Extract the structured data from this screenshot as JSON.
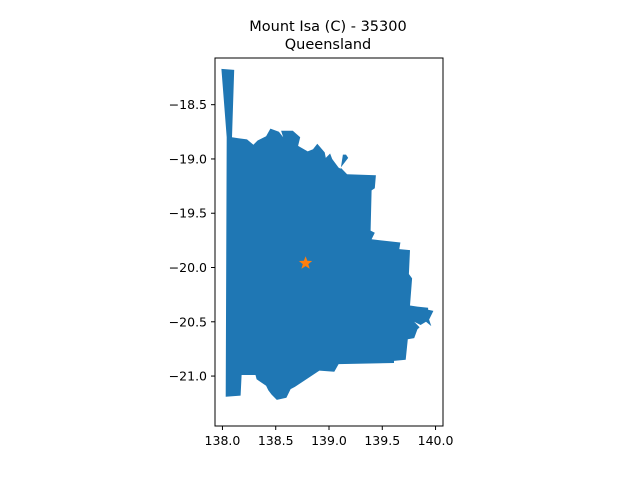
{
  "map": {
    "title": "Mount Isa (C) - 35300",
    "subtitle": "Queensland",
    "region_color": "#1f77b4",
    "marker_color": "#ff7f0e",
    "marker_shape": "star",
    "x_ticks": [
      138.0,
      138.5,
      139.0,
      139.5,
      140.0
    ],
    "x_tick_labels": [
      "138.0",
      "138.5",
      "139.0",
      "139.5",
      "140.0"
    ],
    "y_ticks": [
      -18.5,
      -19.0,
      -19.5,
      -20.0,
      -20.5,
      -21.0
    ],
    "y_tick_labels": [
      "−18.5",
      "−19.0",
      "−19.5",
      "−20.0",
      "−20.5",
      "−21.0"
    ],
    "xlim": [
      137.93,
      140.07
    ],
    "ylim": [
      -21.46,
      -18.07
    ],
    "marker": {
      "lon": 138.78,
      "lat": -19.96
    },
    "boundary": [
      [
        137.99,
        -18.17
      ],
      [
        138.11,
        -18.18
      ],
      [
        138.09,
        -18.8
      ],
      [
        138.15,
        -18.81
      ],
      [
        138.23,
        -18.82
      ],
      [
        138.29,
        -18.87
      ],
      [
        138.33,
        -18.83
      ],
      [
        138.41,
        -18.79
      ],
      [
        138.45,
        -18.72
      ],
      [
        138.53,
        -18.75
      ],
      [
        138.57,
        -18.8
      ],
      [
        138.55,
        -18.74
      ],
      [
        138.66,
        -18.74
      ],
      [
        138.73,
        -18.8
      ],
      [
        138.71,
        -18.88
      ],
      [
        138.8,
        -18.93
      ],
      [
        138.85,
        -18.91
      ],
      [
        138.89,
        -18.86
      ],
      [
        138.96,
        -18.94
      ],
      [
        138.97,
        -18.99
      ],
      [
        139.01,
        -18.95
      ],
      [
        139.03,
        -19.0
      ],
      [
        139.09,
        -19.08
      ],
      [
        139.11,
        -19.09
      ],
      [
        139.13,
        -18.96
      ],
      [
        139.16,
        -18.96
      ],
      [
        139.18,
        -18.99
      ],
      [
        139.11,
        -19.08
      ],
      [
        139.17,
        -19.14
      ],
      [
        139.44,
        -19.15
      ],
      [
        139.43,
        -19.27
      ],
      [
        139.4,
        -19.29
      ],
      [
        139.39,
        -19.66
      ],
      [
        139.43,
        -19.68
      ],
      [
        139.4,
        -19.74
      ],
      [
        139.67,
        -19.77
      ],
      [
        139.66,
        -19.83
      ],
      [
        139.76,
        -19.84
      ],
      [
        139.75,
        -20.06
      ],
      [
        139.78,
        -20.1
      ],
      [
        139.76,
        -20.35
      ],
      [
        139.83,
        -20.36
      ],
      [
        139.93,
        -20.37
      ],
      [
        139.93,
        -20.39
      ],
      [
        139.98,
        -20.4
      ],
      [
        139.94,
        -20.48
      ],
      [
        139.96,
        -20.54
      ],
      [
        139.91,
        -20.5
      ],
      [
        139.86,
        -20.53
      ],
      [
        139.8,
        -20.5
      ],
      [
        139.85,
        -20.55
      ],
      [
        139.83,
        -20.57
      ],
      [
        139.8,
        -20.65
      ],
      [
        139.74,
        -20.66
      ],
      [
        139.72,
        -20.85
      ],
      [
        139.61,
        -20.86
      ],
      [
        139.61,
        -20.88
      ],
      [
        139.09,
        -20.89
      ],
      [
        139.05,
        -20.96
      ],
      [
        138.91,
        -20.95
      ],
      [
        138.68,
        -21.1
      ],
      [
        138.64,
        -21.12
      ],
      [
        138.6,
        -21.2
      ],
      [
        138.51,
        -21.22
      ],
      [
        138.46,
        -21.17
      ],
      [
        138.43,
        -21.13
      ],
      [
        138.41,
        -21.09
      ],
      [
        138.32,
        -21.03
      ],
      [
        138.31,
        -20.99
      ],
      [
        138.18,
        -20.99
      ],
      [
        138.17,
        -21.18
      ],
      [
        138.03,
        -21.19
      ],
      [
        138.04,
        -18.8
      ],
      [
        137.99,
        -18.17
      ]
    ]
  }
}
